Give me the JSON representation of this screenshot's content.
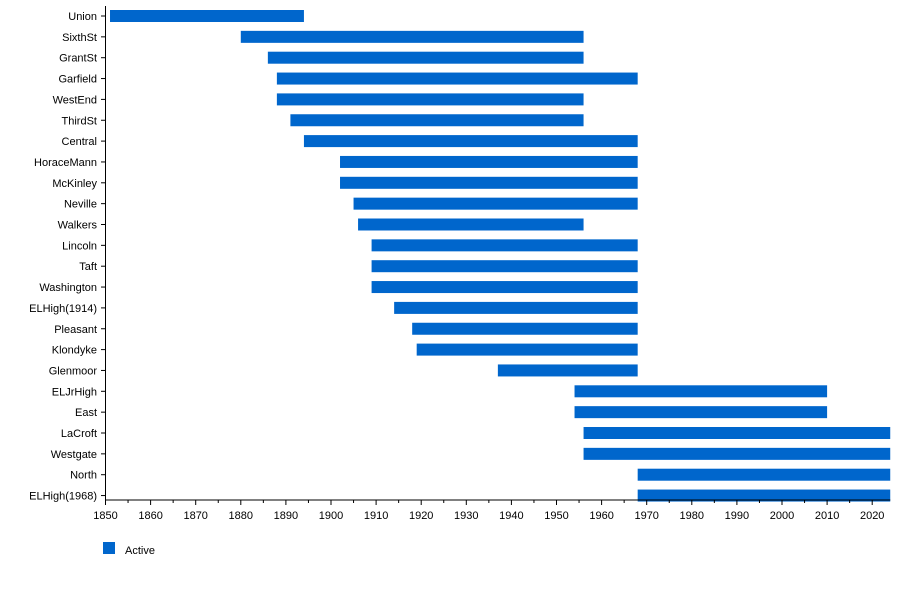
{
  "chart_data": {
    "type": "bar",
    "orientation": "horizontal-timeline",
    "title": "",
    "xlabel": "",
    "ylabel": "",
    "xlim": [
      1850,
      2024
    ],
    "xticks": [
      1850,
      1860,
      1870,
      1880,
      1890,
      1900,
      1910,
      1920,
      1930,
      1940,
      1950,
      1960,
      1970,
      1980,
      1990,
      2000,
      2010,
      2020
    ],
    "grid": false,
    "legend": {
      "placement": "bottom-left",
      "entries": [
        {
          "label": "Active",
          "color": "#0066cc"
        }
      ]
    },
    "series": [
      {
        "name": "Active",
        "color": "#0066cc",
        "rows": [
          {
            "label": "Union",
            "start": 1851,
            "end": 1894
          },
          {
            "label": "SixthSt",
            "start": 1880,
            "end": 1956
          },
          {
            "label": "GrantSt",
            "start": 1886,
            "end": 1956
          },
          {
            "label": "Garfield",
            "start": 1888,
            "end": 1968
          },
          {
            "label": "WestEnd",
            "start": 1888,
            "end": 1956
          },
          {
            "label": "ThirdSt",
            "start": 1891,
            "end": 1956
          },
          {
            "label": "Central",
            "start": 1894,
            "end": 1968
          },
          {
            "label": "HoraceMann",
            "start": 1902,
            "end": 1968
          },
          {
            "label": "McKinley",
            "start": 1902,
            "end": 1968
          },
          {
            "label": "Neville",
            "start": 1905,
            "end": 1968
          },
          {
            "label": "Walkers",
            "start": 1906,
            "end": 1956
          },
          {
            "label": "Lincoln",
            "start": 1909,
            "end": 1968
          },
          {
            "label": "Taft",
            "start": 1909,
            "end": 1968
          },
          {
            "label": "Washington",
            "start": 1909,
            "end": 1968
          },
          {
            "label": "ELHigh(1914)",
            "start": 1914,
            "end": 1968
          },
          {
            "label": "Pleasant",
            "start": 1918,
            "end": 1968
          },
          {
            "label": "Klondyke",
            "start": 1919,
            "end": 1968
          },
          {
            "label": "Glenmoor",
            "start": 1937,
            "end": 1968
          },
          {
            "label": "ELJrHigh",
            "start": 1954,
            "end": 2010
          },
          {
            "label": "East",
            "start": 1954,
            "end": 2010
          },
          {
            "label": "LaCroft",
            "start": 1956,
            "end": 2024
          },
          {
            "label": "Westgate",
            "start": 1956,
            "end": 2024
          },
          {
            "label": "North",
            "start": 1968,
            "end": 2024
          },
          {
            "label": "ELHigh(1968)",
            "start": 1968,
            "end": 2024
          }
        ]
      }
    ]
  }
}
